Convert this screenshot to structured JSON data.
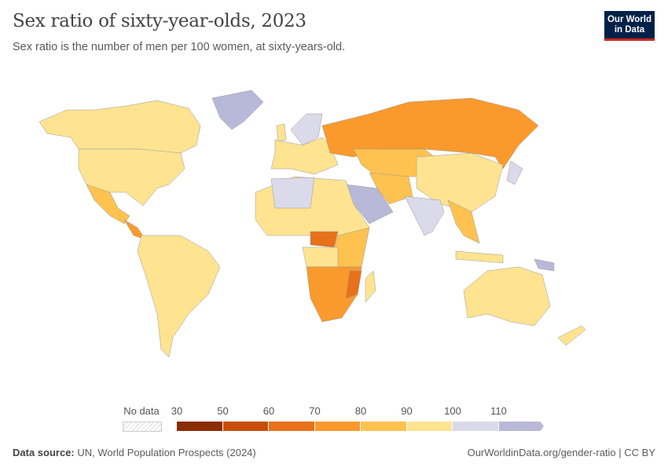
{
  "header": {
    "title": "Sex ratio of sixty-year-olds, 2023",
    "subtitle": "Sex ratio is the number of men per 100 women, at sixty-years-old.",
    "logo_line1": "Our World",
    "logo_line2": "in Data"
  },
  "legend": {
    "no_data_label": "No data",
    "tick_labels": [
      "30",
      "50",
      "60",
      "70",
      "80",
      "90",
      "100",
      "110"
    ],
    "bins": [
      {
        "from": 30,
        "to": 50,
        "color": "#8b2d02"
      },
      {
        "from": 50,
        "to": 60,
        "color": "#c84e05"
      },
      {
        "from": 60,
        "to": 70,
        "color": "#e8711a"
      },
      {
        "from": 70,
        "to": 80,
        "color": "#fa9a2c"
      },
      {
        "from": 80,
        "to": 90,
        "color": "#fec250"
      },
      {
        "from": 90,
        "to": 100,
        "color": "#fee391"
      },
      {
        "from": 100,
        "to": 110,
        "color": "#dadaea"
      },
      {
        "from": 110,
        "to": null,
        "color": "#b8b8d8"
      }
    ]
  },
  "footer": {
    "source_label": "Data source:",
    "source": "UN, World Population Prospects (2024)",
    "url": "OurWorldinData.org/gender-ratio | CC BY"
  }
}
